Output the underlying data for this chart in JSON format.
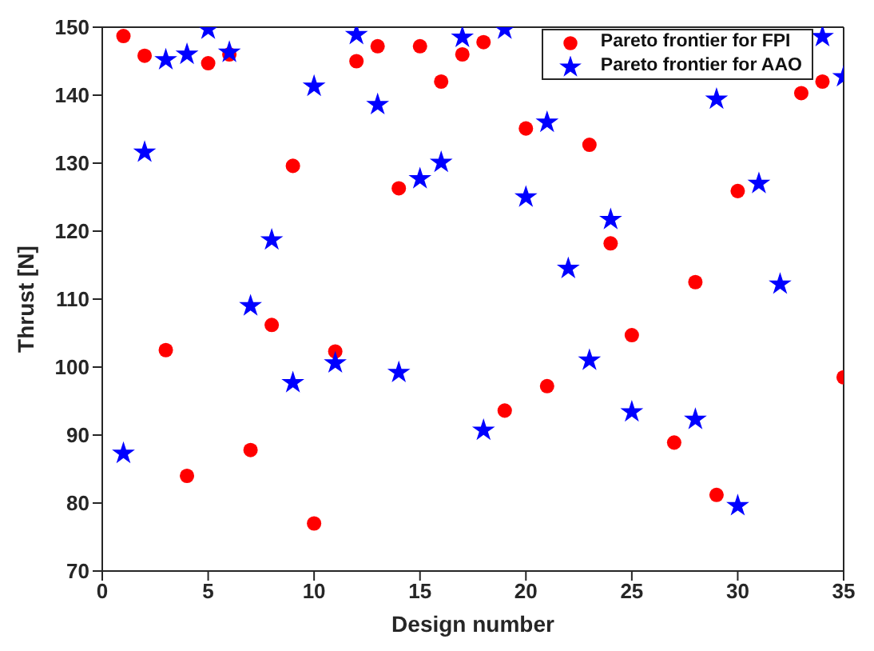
{
  "chart_data": {
    "type": "scatter",
    "xlabel": "Design number",
    "ylabel": "Thrust [N]",
    "xlim": [
      0,
      35
    ],
    "xticks": [
      0,
      5,
      10,
      15,
      20,
      25,
      30,
      35
    ],
    "ylim": [
      70,
      150
    ],
    "yticks": [
      70,
      80,
      90,
      100,
      110,
      120,
      130,
      140,
      150
    ],
    "grid": false,
    "legend": "top right",
    "series": [
      {
        "name": "Pareto frontier for FPI",
        "color": "#ff0000",
        "marker": "circle",
        "x": [
          1,
          2,
          3,
          4,
          5,
          6,
          7,
          8,
          9,
          10,
          11,
          12,
          13,
          14,
          15,
          16,
          17,
          18,
          19,
          20,
          21,
          23,
          24,
          25,
          27,
          28,
          29,
          30,
          33,
          34,
          35
        ],
        "values": [
          148.7,
          145.8,
          102.5,
          84,
          144.7,
          146,
          87.8,
          106.2,
          129.6,
          77,
          102.3,
          145,
          147.2,
          126.3,
          147.2,
          142,
          146,
          147.8,
          93.6,
          135.1,
          97.2,
          132.7,
          118.2,
          104.7,
          88.9,
          112.5,
          81.2,
          125.9,
          140.3,
          142,
          98.5
        ]
      },
      {
        "name": "Pareto frontier for AAO",
        "color": "#0000ff",
        "marker": "star",
        "x": [
          1,
          2,
          3,
          4,
          5,
          6,
          7,
          8,
          9,
          10,
          11,
          12,
          13,
          14,
          15,
          16,
          17,
          18,
          19,
          20,
          21,
          22,
          23,
          24,
          25,
          28,
          29,
          30,
          31,
          32,
          34,
          35
        ],
        "values": [
          87.3,
          131.6,
          145.2,
          146,
          149.7,
          146.3,
          109,
          118.7,
          97.7,
          141.3,
          100.6,
          148.9,
          138.6,
          99.2,
          127.7,
          130.1,
          148.5,
          90.7,
          149.7,
          125,
          136,
          114.5,
          101,
          121.7,
          93.4,
          92.3,
          139.4,
          79.6,
          127,
          112.2,
          148.6,
          142.7
        ]
      }
    ]
  }
}
